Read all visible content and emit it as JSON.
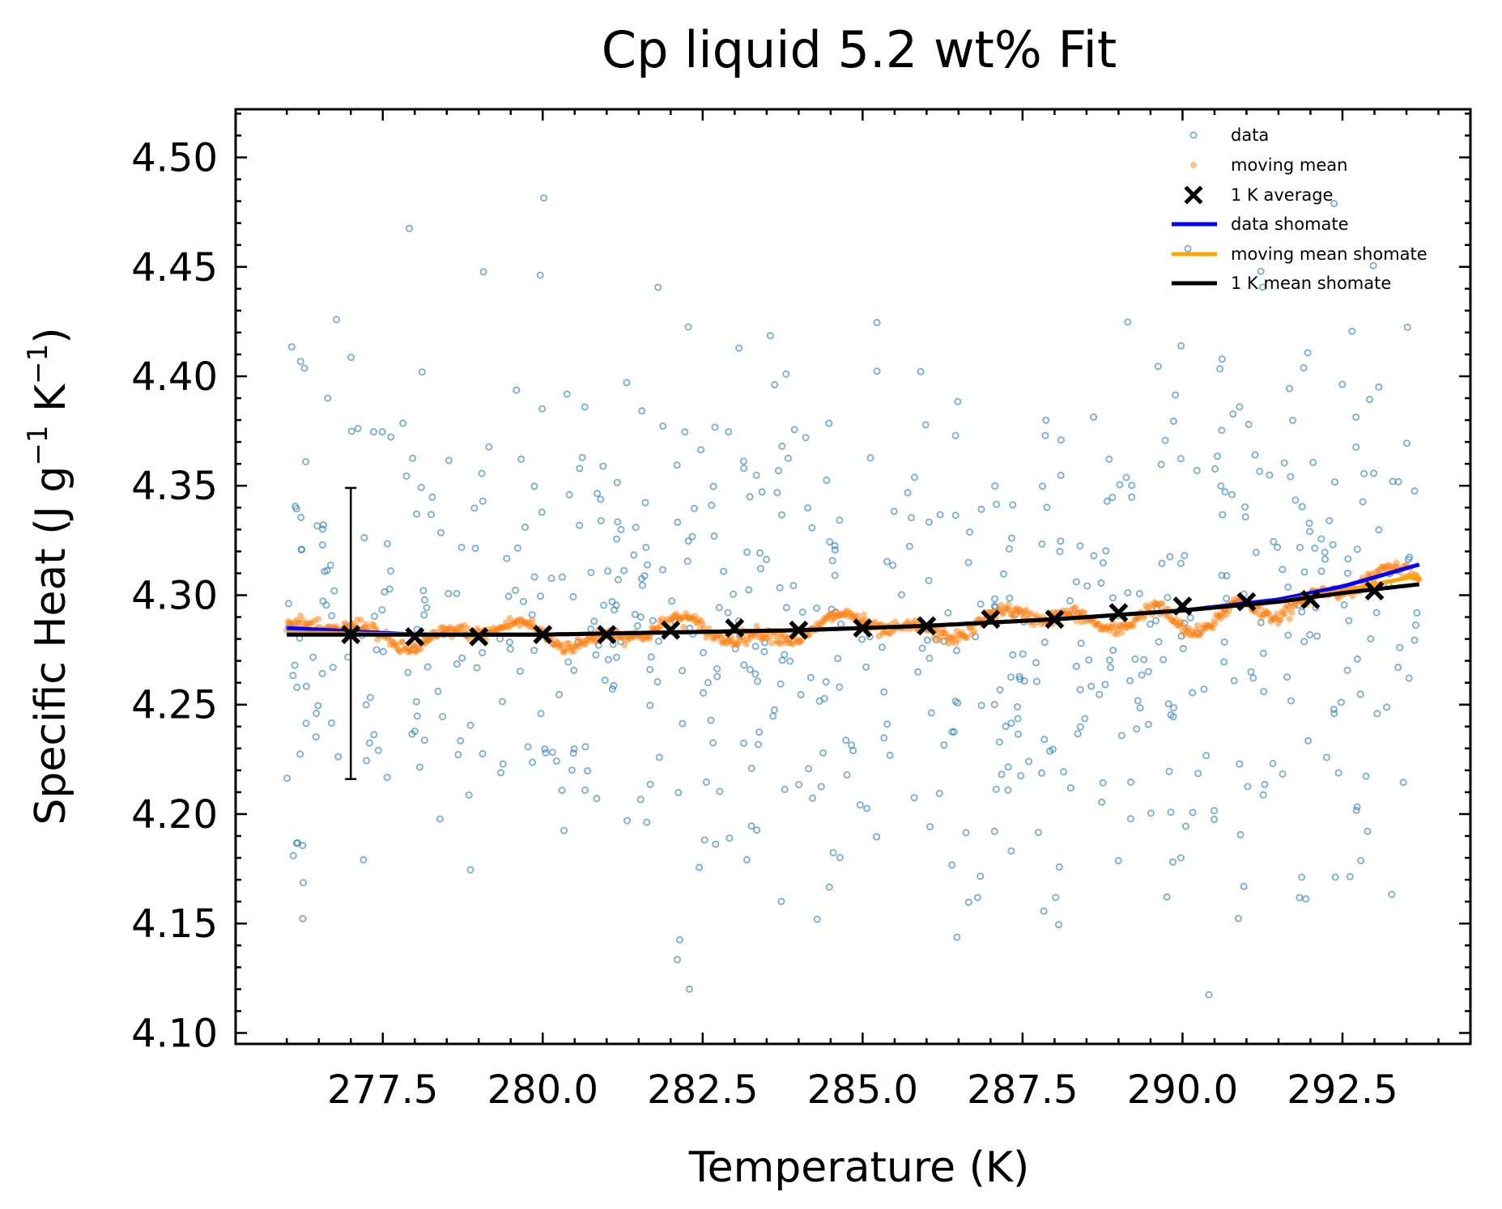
{
  "chart_data": {
    "type": "scatter",
    "title": "Cp liquid 5.2 wt% Fit",
    "xlabel": "Temperature (K)",
    "ylabel_main": "Specific Heat (J g",
    "ylabel_sup1": "−1",
    "ylabel_mid": " K",
    "ylabel_sup2": "−1",
    "ylabel_end": ")",
    "xlim": [
      275.2,
      294.5
    ],
    "ylim": [
      4.095,
      4.522
    ],
    "x_ticks": [
      277.5,
      280.0,
      282.5,
      285.0,
      287.5,
      290.0,
      292.5
    ],
    "x_tick_labels": [
      "277.5",
      "280.0",
      "282.5",
      "285.0",
      "287.5",
      "290.0",
      "292.5"
    ],
    "y_ticks": [
      4.1,
      4.15,
      4.2,
      4.25,
      4.3,
      4.35,
      4.4,
      4.45,
      4.5
    ],
    "y_tick_labels": [
      "4.10",
      "4.15",
      "4.20",
      "4.25",
      "4.30",
      "4.35",
      "4.40",
      "4.45",
      "4.50"
    ],
    "grid": false,
    "legend_position": "top-right",
    "data_x_range": [
      276.0,
      293.7
    ],
    "data_noise_sd": 0.062,
    "series": [
      {
        "name": "data",
        "kind": "scatter",
        "color": "#1f77b4"
      },
      {
        "name": "moving mean",
        "kind": "scatter",
        "color": "#ff7f0e"
      },
      {
        "name": "1 K average",
        "kind": "marker",
        "color": "#000000",
        "x": [
          277,
          278,
          279,
          280,
          281,
          282,
          283,
          284,
          285,
          286,
          287,
          288,
          289,
          290,
          291,
          292,
          293
        ],
        "y": [
          4.282,
          4.281,
          4.281,
          4.282,
          4.282,
          4.284,
          4.285,
          4.284,
          4.285,
          4.286,
          4.289,
          4.289,
          4.292,
          4.295,
          4.297,
          4.298,
          4.302
        ]
      },
      {
        "name": "data shomate",
        "kind": "line",
        "color": "#0000ff",
        "x": [
          276.0,
          278.0,
          280.0,
          282.0,
          284.0,
          286.0,
          288.0,
          290.0,
          291.5,
          292.5,
          293.7
        ],
        "y": [
          4.285,
          4.282,
          4.282,
          4.283,
          4.284,
          4.286,
          4.289,
          4.293,
          4.298,
          4.304,
          4.314
        ]
      },
      {
        "name": "moving mean shomate",
        "kind": "line",
        "color": "#ffa500",
        "x": [
          276.0,
          278.0,
          280.0,
          282.0,
          284.0,
          286.0,
          288.0,
          290.0,
          291.5,
          292.5,
          293.7
        ],
        "y": [
          4.283,
          4.282,
          4.282,
          4.283,
          4.284,
          4.286,
          4.289,
          4.293,
          4.297,
          4.302,
          4.309
        ]
      },
      {
        "name": "1 K mean shomate",
        "kind": "line",
        "color": "#000000",
        "x": [
          276.0,
          278.0,
          280.0,
          282.0,
          284.0,
          286.0,
          288.0,
          290.0,
          291.5,
          292.5,
          293.7
        ],
        "y": [
          4.282,
          4.282,
          4.282,
          4.283,
          4.284,
          4.286,
          4.289,
          4.293,
          4.297,
          4.301,
          4.305
        ]
      }
    ],
    "error_bar": {
      "x": 277,
      "y": 4.282,
      "low": 4.216,
      "high": 4.349
    }
  }
}
